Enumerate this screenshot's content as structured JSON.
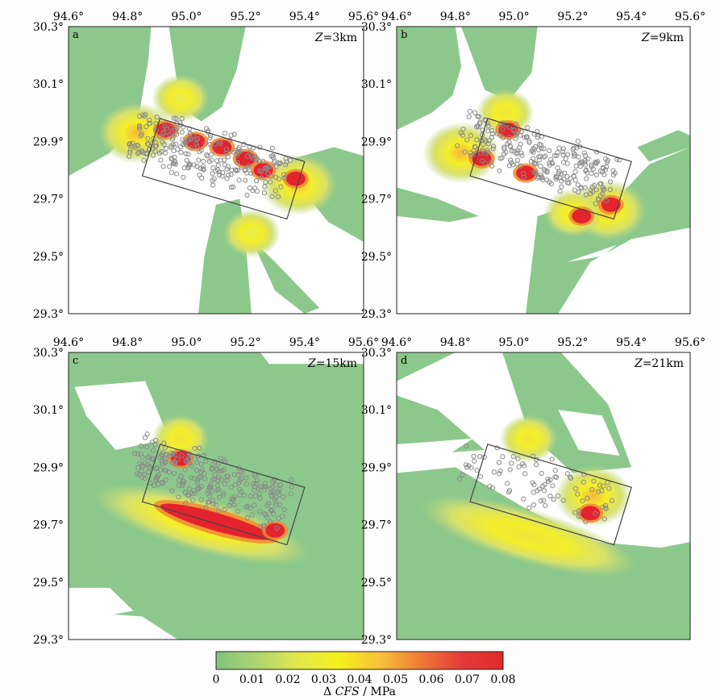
{
  "chart_data": [
    {
      "type": "heatmap",
      "panel_label": "a",
      "depth_label_var": "Z",
      "depth_label_value": "=3km",
      "xticks": [
        "94.6°",
        "94.8°",
        "95.0°",
        "95.2°",
        "95.4°",
        "95.6°"
      ],
      "yticks": [
        "30.3°",
        "30.1°",
        "29.9°",
        "29.7°",
        "29.5°",
        "29.3°"
      ],
      "xlim": [
        94.6,
        95.6
      ],
      "ylim": [
        29.3,
        30.3
      ],
      "fault_polygon": [
        [
          94.91,
          29.98
        ],
        [
          95.4,
          29.83
        ],
        [
          95.34,
          29.63
        ],
        [
          94.85,
          29.78
        ]
      ],
      "quadrant_lobes": [
        {
          "lon": 94.83,
          "lat": 29.93,
          "level": 0.04
        },
        {
          "lon": 95.38,
          "lat": 29.75,
          "level": 0.04
        },
        {
          "lon": 94.98,
          "lat": 30.05,
          "level": 0.02
        },
        {
          "lon": 95.22,
          "lat": 29.58,
          "level": 0.02
        }
      ],
      "hotspots": [
        {
          "lon": 94.93,
          "lat": 29.94,
          "level": 0.08
        },
        {
          "lon": 95.03,
          "lat": 29.9,
          "level": 0.08
        },
        {
          "lon": 95.12,
          "lat": 29.88,
          "level": 0.08
        },
        {
          "lon": 95.2,
          "lat": 29.84,
          "level": 0.08
        },
        {
          "lon": 95.26,
          "lat": 29.8,
          "level": 0.08
        },
        {
          "lon": 95.37,
          "lat": 29.77,
          "level": 0.08
        }
      ]
    },
    {
      "type": "heatmap",
      "panel_label": "b",
      "depth_label_var": "Z",
      "depth_label_value": "=9km",
      "xticks": [
        "94.6°",
        "94.8°",
        "95.0°",
        "95.2°",
        "95.4°",
        "95.6°"
      ],
      "yticks": [
        "30.3°",
        "30.1°",
        "29.9°",
        "29.7°",
        "29.5°",
        "29.3°"
      ],
      "xlim": [
        94.6,
        95.6
      ],
      "ylim": [
        29.3,
        30.3
      ],
      "fault_polygon": [
        [
          94.91,
          29.98
        ],
        [
          95.4,
          29.83
        ],
        [
          95.34,
          29.63
        ],
        [
          94.85,
          29.78
        ]
      ],
      "quadrant_lobes": [
        {
          "lon": 94.82,
          "lat": 29.86,
          "level": 0.04
        },
        {
          "lon": 95.32,
          "lat": 29.66,
          "level": 0.04
        },
        {
          "lon": 94.97,
          "lat": 30.0,
          "level": 0.03
        },
        {
          "lon": 95.2,
          "lat": 29.65,
          "level": 0.03
        }
      ],
      "hotspots": [
        {
          "lon": 94.89,
          "lat": 29.84,
          "level": 0.08
        },
        {
          "lon": 94.98,
          "lat": 29.94,
          "level": 0.08
        },
        {
          "lon": 95.04,
          "lat": 29.79,
          "level": 0.08
        },
        {
          "lon": 95.23,
          "lat": 29.64,
          "level": 0.08
        },
        {
          "lon": 95.33,
          "lat": 29.68,
          "level": 0.08
        }
      ]
    },
    {
      "type": "heatmap",
      "panel_label": "c",
      "depth_label_var": "Z",
      "depth_label_value": "=15km",
      "xticks": [
        "94.6°",
        "94.8°",
        "95.0°",
        "95.2°",
        "95.4°",
        "95.6°"
      ],
      "yticks": [
        "30.3°",
        "30.1°",
        "29.9°",
        "29.7°",
        "29.5°",
        "29.3°"
      ],
      "xlim": [
        94.6,
        95.6
      ],
      "ylim": [
        29.3,
        30.3
      ],
      "fault_polygon": [
        [
          94.91,
          29.98
        ],
        [
          95.4,
          29.83
        ],
        [
          95.34,
          29.63
        ],
        [
          94.85,
          29.78
        ]
      ],
      "quadrant_lobes": [
        {
          "lon": 95.05,
          "lat": 29.7,
          "level": 0.03
        },
        {
          "lon": 94.98,
          "lat": 30.0,
          "level": 0.03
        }
      ],
      "hotspots": [
        {
          "lon": 94.98,
          "lat": 29.93,
          "level": 0.08
        },
        {
          "lon": 95.1,
          "lat": 29.71,
          "level": 0.08
        },
        {
          "lon": 95.3,
          "lat": 29.68,
          "level": 0.08
        }
      ]
    },
    {
      "type": "heatmap",
      "panel_label": "d",
      "depth_label_var": "Z",
      "depth_label_value": "=21km",
      "xticks": [
        "94.6°",
        "94.8°",
        "95.0°",
        "95.2°",
        "95.4°",
        "95.6°"
      ],
      "yticks": [
        "30.3°",
        "30.1°",
        "29.9°",
        "29.7°",
        "29.5°",
        "29.3°"
      ],
      "xlim": [
        94.6,
        95.6
      ],
      "ylim": [
        29.3,
        30.3
      ],
      "fault_polygon": [
        [
          94.91,
          29.98
        ],
        [
          95.4,
          29.83
        ],
        [
          95.34,
          29.63
        ],
        [
          94.85,
          29.78
        ]
      ],
      "quadrant_lobes": [
        {
          "lon": 95.05,
          "lat": 29.66,
          "level": 0.03
        },
        {
          "lon": 95.05,
          "lat": 30.0,
          "level": 0.03
        },
        {
          "lon": 95.27,
          "lat": 29.8,
          "level": 0.04
        }
      ],
      "hotspots": [
        {
          "lon": 95.26,
          "lat": 29.74,
          "level": 0.08
        }
      ]
    }
  ],
  "colorbar": {
    "ticks": [
      "0",
      "0.01",
      "0.02",
      "0.03",
      "0.04",
      "0.05",
      "0.06",
      "0.07",
      "0.08"
    ],
    "range": [
      0,
      0.08
    ],
    "label_prefix": "Δ ",
    "label_var": "CFS",
    "label_suffix": " / MPa",
    "stops": [
      "#7fc47f",
      "#b0d470",
      "#e2e84a",
      "#f5f01c",
      "#f8c03a",
      "#f07a36",
      "#e43a3a",
      "#e02a2a"
    ]
  },
  "colors": {
    "positive_background": "#8cc88c",
    "negative_background": "#ffffff",
    "aftershock": "#8a8a8a",
    "fault": "#444444",
    "frame": "#222222"
  }
}
